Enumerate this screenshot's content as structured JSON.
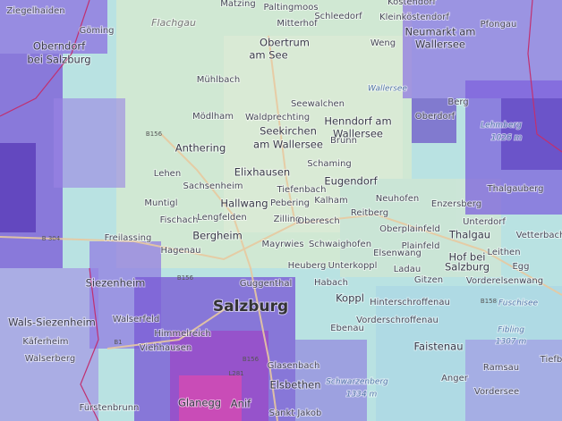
{
  "labels": [
    "Ziegelhaiden",
    "Matzing",
    "Paltingmoos",
    "Köstendorf",
    "Göming",
    "Flachgau",
    "Mitterhof",
    "Schleedorf",
    "Kleinköstendorf",
    "Pfongau",
    "Obertrum",
    "am See",
    "Neumarkt am",
    "Wallersee",
    "Oberndorf",
    "bei Salzburg",
    "Weng",
    "Mühlbach",
    "Wallersee",
    "Seewalchen",
    "Berg",
    "Mödlham",
    "Waldprechting",
    "Henndorf am",
    "Wallersee",
    "Oberdorf",
    "Lehmberg",
    "1026 m",
    "Seekirchen",
    "am Wallersee",
    "Brunn",
    "B156",
    "Anthering",
    "Elixhausen",
    "Schaming",
    "Lehen",
    "Tiefenbach",
    "Eugendorf",
    "Thalgauberg",
    "Sachsenheim",
    "Muntigl",
    "Kalham",
    "Neuhofen",
    "Enzersberg",
    "Hallwang",
    "Pebering",
    "Fischach",
    "Lengfelden",
    "Zilling",
    "Oberesch",
    "Reitberg",
    "Unterdorf",
    "Oberplainfeld",
    "B 304",
    "Freilassing",
    "Bergheim",
    "Thalgau",
    "Vetterbach",
    "Hagenau",
    "Mayrwies",
    "Schwaighofen",
    "Plainfeld",
    "Leithen",
    "Elsenwang",
    "Heuberg",
    "Unterkoppl",
    "Ladau",
    "Hof bei",
    "Salzburg",
    "Egg",
    "B156",
    "Siezenheim",
    "Habach",
    "Gitzen",
    "Vorderelsenwang",
    "Guggenthal",
    "Koppl",
    "Hinterschroffenau",
    "B158",
    "Fuschisee",
    "Salzburg",
    "Wals-Siezenheim",
    "Walserfeld",
    "Vorderschroffenau",
    "Himmelreich",
    "Ebenau",
    "Fibling",
    "1307 m",
    "Käferheim",
    "B1",
    "Viehhausen",
    "Faistenau",
    "Walserberg",
    "Glasenbach",
    "Ramsau",
    "B156",
    "L281",
    "Anger",
    "Tiefbr",
    "Schwarzenberg",
    "1334 m",
    "Vordersee",
    "Elsbethen",
    "Fürstenbrunn",
    "Glanegg",
    "Anif",
    "Sankt Jakob"
  ]
}
